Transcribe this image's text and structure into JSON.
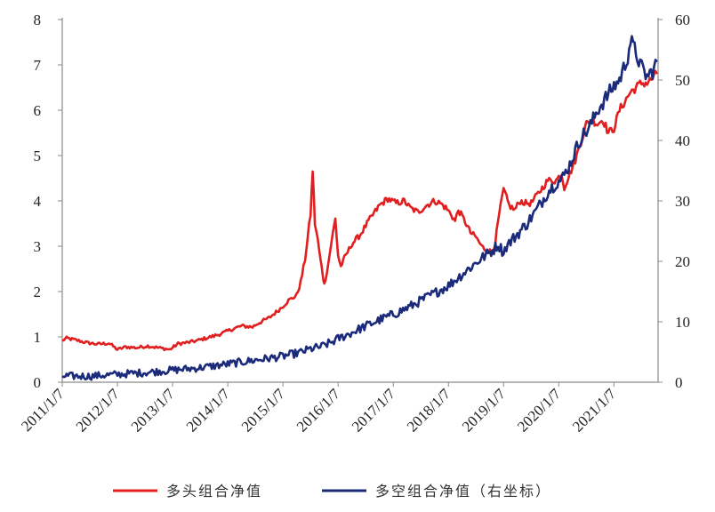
{
  "chart_data": {
    "type": "line",
    "x_tick_labels": [
      "2011/1/7",
      "2012/1/7",
      "2013/1/7",
      "2014/1/7",
      "2015/1/7",
      "2016/1/7",
      "2017/1/7",
      "2018/1/7",
      "2019/1/7",
      "2020/1/7",
      "2021/1/7"
    ],
    "x_range": [
      2011.0,
      2021.8
    ],
    "left_axis": {
      "ylim": [
        0,
        8
      ],
      "ticks": [
        "0",
        "1",
        "2",
        "3",
        "4",
        "5",
        "6",
        "7",
        "8"
      ]
    },
    "right_axis": {
      "ylim": [
        0,
        60
      ],
      "ticks": [
        "0",
        "10",
        "20",
        "30",
        "40",
        "50",
        "60"
      ]
    },
    "grid": false,
    "legend_position": "bottom",
    "series": [
      {
        "name": "多头组合净值",
        "axis": "left",
        "color": "#e02020",
        "points": [
          [
            2011.0,
            0.92
          ],
          [
            2011.08,
            0.97
          ],
          [
            2011.25,
            0.93
          ],
          [
            2011.45,
            0.87
          ],
          [
            2011.65,
            0.84
          ],
          [
            2011.85,
            0.86
          ],
          [
            2012.0,
            0.72
          ],
          [
            2012.15,
            0.78
          ],
          [
            2012.35,
            0.76
          ],
          [
            2012.55,
            0.8
          ],
          [
            2012.75,
            0.76
          ],
          [
            2012.95,
            0.72
          ],
          [
            2013.1,
            0.85
          ],
          [
            2013.3,
            0.88
          ],
          [
            2013.45,
            0.92
          ],
          [
            2013.6,
            0.97
          ],
          [
            2013.75,
            1.02
          ],
          [
            2013.9,
            1.08
          ],
          [
            2014.1,
            1.18
          ],
          [
            2014.25,
            1.24
          ],
          [
            2014.45,
            1.22
          ],
          [
            2014.55,
            1.3
          ],
          [
            2014.75,
            1.42
          ],
          [
            2014.95,
            1.62
          ],
          [
            2015.1,
            1.8
          ],
          [
            2015.25,
            1.92
          ],
          [
            2015.32,
            2.2
          ],
          [
            2015.4,
            2.7
          ],
          [
            2015.45,
            3.2
          ],
          [
            2015.5,
            3.7
          ],
          [
            2015.54,
            4.68
          ],
          [
            2015.58,
            3.5
          ],
          [
            2015.63,
            3.15
          ],
          [
            2015.68,
            2.7
          ],
          [
            2015.72,
            2.4
          ],
          [
            2015.75,
            2.15
          ],
          [
            2015.82,
            2.6
          ],
          [
            2015.88,
            3.1
          ],
          [
            2015.95,
            3.6
          ],
          [
            2016.0,
            2.8
          ],
          [
            2016.05,
            2.55
          ],
          [
            2016.12,
            2.75
          ],
          [
            2016.25,
            3.05
          ],
          [
            2016.4,
            3.25
          ],
          [
            2016.55,
            3.55
          ],
          [
            2016.75,
            3.9
          ],
          [
            2016.9,
            4.05
          ],
          [
            2017.05,
            3.95
          ],
          [
            2017.2,
            4.0
          ],
          [
            2017.3,
            3.85
          ],
          [
            2017.45,
            3.75
          ],
          [
            2017.6,
            3.9
          ],
          [
            2017.75,
            4.0
          ],
          [
            2017.85,
            3.95
          ],
          [
            2017.95,
            3.85
          ],
          [
            2018.05,
            3.7
          ],
          [
            2018.12,
            3.55
          ],
          [
            2018.18,
            3.8
          ],
          [
            2018.3,
            3.55
          ],
          [
            2018.4,
            3.3
          ],
          [
            2018.5,
            3.2
          ],
          [
            2018.6,
            3.0
          ],
          [
            2018.7,
            2.9
          ],
          [
            2018.8,
            2.88
          ],
          [
            2018.85,
            3.1
          ],
          [
            2018.92,
            3.7
          ],
          [
            2019.0,
            4.25
          ],
          [
            2019.1,
            3.9
          ],
          [
            2019.2,
            3.8
          ],
          [
            2019.3,
            4.0
          ],
          [
            2019.4,
            3.95
          ],
          [
            2019.5,
            3.95
          ],
          [
            2019.65,
            4.2
          ],
          [
            2019.8,
            4.45
          ],
          [
            2019.95,
            4.45
          ],
          [
            2020.05,
            4.6
          ],
          [
            2020.1,
            4.3
          ],
          [
            2020.2,
            4.6
          ],
          [
            2020.3,
            4.9
          ],
          [
            2020.4,
            5.3
          ],
          [
            2020.5,
            5.7
          ],
          [
            2020.6,
            5.8
          ],
          [
            2020.7,
            5.7
          ],
          [
            2020.8,
            5.8
          ],
          [
            2020.9,
            5.5
          ],
          [
            2021.0,
            5.6
          ],
          [
            2021.1,
            6.0
          ],
          [
            2021.2,
            6.2
          ],
          [
            2021.3,
            6.4
          ],
          [
            2021.4,
            6.5
          ],
          [
            2021.5,
            6.6
          ],
          [
            2021.6,
            6.6
          ],
          [
            2021.7,
            6.7
          ],
          [
            2021.78,
            6.8
          ]
        ]
      },
      {
        "name": "多空组合净值（右坐标）",
        "axis": "right",
        "color": "#1b2a7a",
        "points": [
          [
            2011.0,
            1.0
          ],
          [
            2011.5,
            1.0
          ],
          [
            2012.0,
            1.3
          ],
          [
            2012.5,
            1.6
          ],
          [
            2013.0,
            2.0
          ],
          [
            2013.5,
            2.4
          ],
          [
            2014.0,
            3.0
          ],
          [
            2014.3,
            3.4
          ],
          [
            2014.7,
            3.9
          ],
          [
            2015.0,
            4.3
          ],
          [
            2015.3,
            4.9
          ],
          [
            2015.5,
            5.5
          ],
          [
            2015.7,
            5.9
          ],
          [
            2015.9,
            6.7
          ],
          [
            2016.0,
            7.2
          ],
          [
            2016.2,
            8.0
          ],
          [
            2016.5,
            9.3
          ],
          [
            2016.8,
            10.5
          ],
          [
            2017.0,
            11.2
          ],
          [
            2017.3,
            12.5
          ],
          [
            2017.6,
            14.0
          ],
          [
            2017.8,
            15.0
          ],
          [
            2018.0,
            16.0
          ],
          [
            2018.2,
            17.5
          ],
          [
            2018.4,
            19.0
          ],
          [
            2018.6,
            20.5
          ],
          [
            2018.8,
            21.8
          ],
          [
            2018.9,
            22.8
          ],
          [
            2019.0,
            21.5
          ],
          [
            2019.05,
            22.5
          ],
          [
            2019.2,
            24.0
          ],
          [
            2019.4,
            26.0
          ],
          [
            2019.6,
            28.5
          ],
          [
            2019.8,
            31.5
          ],
          [
            2019.95,
            33.0
          ],
          [
            2020.05,
            33.5
          ],
          [
            2020.2,
            36.0
          ],
          [
            2020.4,
            40.5
          ],
          [
            2020.55,
            42.0
          ],
          [
            2020.7,
            45.0
          ],
          [
            2020.85,
            47.0
          ],
          [
            2021.0,
            49.0
          ],
          [
            2021.1,
            50.0
          ],
          [
            2021.2,
            52.5
          ],
          [
            2021.25,
            54.0
          ],
          [
            2021.3,
            56.5
          ],
          [
            2021.4,
            54.5
          ],
          [
            2021.5,
            52.0
          ],
          [
            2021.6,
            50.5
          ],
          [
            2021.7,
            51.5
          ],
          [
            2021.78,
            53.0
          ]
        ]
      }
    ]
  }
}
